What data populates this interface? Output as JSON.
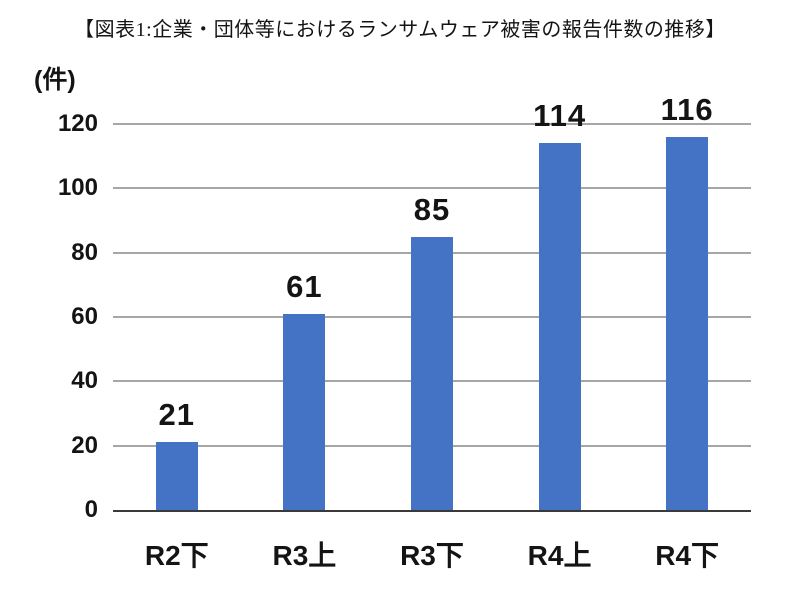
{
  "figure": {
    "title": "【図表1:企業・団体等におけるランサムウェア被害の報告件数の推移】"
  },
  "chart_data": {
    "type": "bar",
    "title": "【図表1:企業・団体等におけるランサムウェア被害の報告件数の推移】",
    "unit_label": "(件)",
    "categories": [
      "R2下",
      "R3上",
      "R3下",
      "R4上",
      "R4下"
    ],
    "values": [
      21,
      61,
      85,
      114,
      116
    ],
    "data_labels": [
      "21",
      "61",
      "85",
      "114",
      "116"
    ],
    "xlabel": "",
    "ylabel": "(件)",
    "ylim": [
      0,
      120
    ],
    "y_ticks": [
      0,
      20,
      40,
      60,
      80,
      100,
      120
    ],
    "grid": true,
    "legend": false,
    "layout": {
      "bar_label_position": "outside-end",
      "gridline_style": "horizontal"
    },
    "colors": {
      "bar": "#4472C4",
      "gridline": "#A6A6A6",
      "axis_line": "#3A3A3A",
      "text": "#141414",
      "background": "#FFFFFF"
    }
  }
}
